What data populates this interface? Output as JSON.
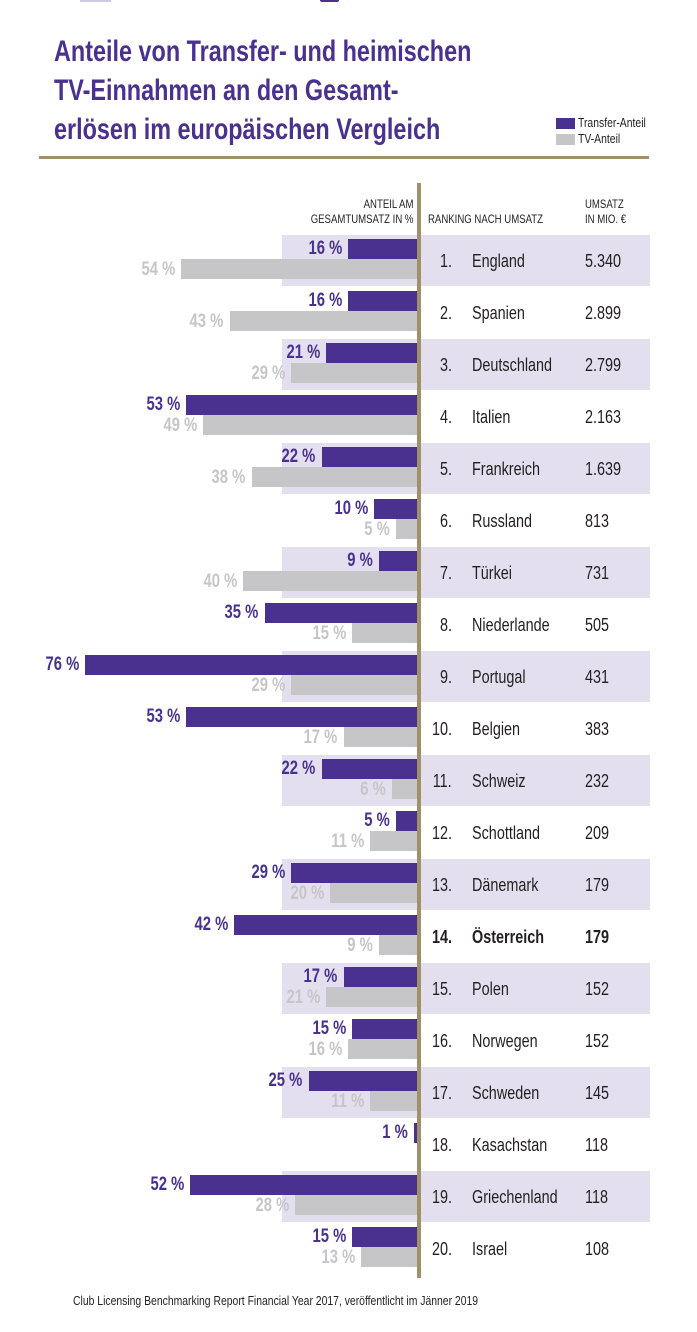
{
  "header": {
    "title_lines": [
      "Anteile von Transfer- und heimischen",
      "TV-Einnahmen an den Gesamt-",
      "erlösen im europäischen Vergleich"
    ]
  },
  "legend": [
    {
      "label": "Transfer-Anteil",
      "color": "#4a3190"
    },
    {
      "label": "TV-Anteil",
      "color": "#c6c6c8"
    }
  ],
  "columns": {
    "share_line1": "ANTEIL AM",
    "share_line2": "GESAMTUMSATZ IN %",
    "ranking": "RANKING NACH UMSATZ",
    "revenue_line1": "UMSATZ",
    "revenue_line2": "IN MIO. €"
  },
  "colors": {
    "transfer": "#4a3190",
    "tv": "#c6c6c8",
    "row_highlight": "#e3dfef",
    "rule": "#a0916a"
  },
  "chart_data": {
    "type": "bar",
    "orientation": "horizontal",
    "title": "Anteile von Transfer- und heimischen TV-Einnahmen an den Gesamterlösen im europäischen Vergleich",
    "xlabel": "Anteil am Gesamtumsatz in %",
    "xlim": [
      0,
      80
    ],
    "legend_position": "top-right",
    "grid": false,
    "unit_suffix": " %",
    "categories": [
      "England",
      "Spanien",
      "Deutschland",
      "Italien",
      "Frankreich",
      "Russland",
      "Türkei",
      "Niederlande",
      "Portugal",
      "Belgien",
      "Schweiz",
      "Schottland",
      "Dänemark",
      "Österreich",
      "Polen",
      "Norwegen",
      "Schweden",
      "Kasachstan",
      "Griechenland",
      "Israel"
    ],
    "ranks": [
      "1.",
      "2.",
      "3.",
      "4.",
      "5.",
      "6.",
      "7.",
      "8.",
      "9.",
      "10.",
      "11.",
      "12.",
      "13.",
      "14.",
      "15.",
      "16.",
      "17.",
      "18.",
      "19.",
      "20."
    ],
    "revenue_mio_eur": [
      "5.340",
      "2.899",
      "2.799",
      "2.163",
      "1.639",
      "813",
      "731",
      "505",
      "431",
      "383",
      "232",
      "209",
      "179",
      "179",
      "152",
      "152",
      "145",
      "118",
      "118",
      "108"
    ],
    "highlighted": [
      "Österreich"
    ],
    "series": [
      {
        "name": "Transfer-Anteil",
        "values": [
          16,
          16,
          21,
          53,
          22,
          10,
          9,
          35,
          76,
          53,
          22,
          5,
          29,
          42,
          17,
          15,
          25,
          1,
          52,
          15
        ]
      },
      {
        "name": "TV-Anteil",
        "values": [
          54,
          43,
          29,
          49,
          38,
          5,
          40,
          15,
          29,
          17,
          6,
          11,
          20,
          9,
          21,
          16,
          11,
          null,
          28,
          13
        ]
      }
    ]
  },
  "footer": {
    "source": "Club Licensing Benchmarking Report Financial Year 2017, veröffentlicht im Jänner 2019"
  }
}
